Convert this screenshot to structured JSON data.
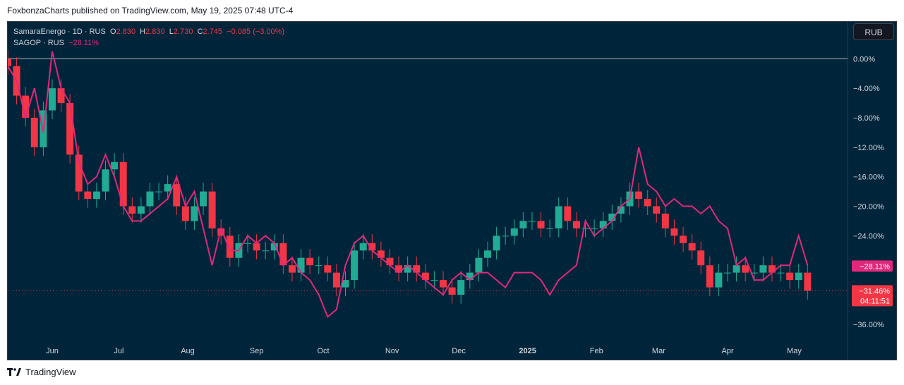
{
  "header": {
    "published_text": "FoxbonzaCharts published on TradingView.com, May 19, 2025 07:48 UTC-4"
  },
  "legend": {
    "line1_symbol": "SamaraEnergo · 1D · RUS",
    "o_label": "O",
    "o_value": "2.830",
    "h_label": "H",
    "h_value": "2.830",
    "l_label": "L",
    "l_value": "2.730",
    "c_label": "C",
    "c_value": "2.745",
    "change": "−0.085 (−3.00%)",
    "line2_symbol": "SAGOP · RUS",
    "line2_change": "−28.11%"
  },
  "currency_button": "RUB",
  "footer": {
    "brand": "TradingView"
  },
  "colors": {
    "background": "#00253a",
    "up": "#22ab94",
    "down": "#f23645",
    "compare_line": "#e0287a",
    "axis_text": "#d1d4dc"
  },
  "chart_data": {
    "type": "line",
    "title": "SamaraEnergo · 1D · RUS",
    "ylabel": "",
    "y_axis_format": "percent",
    "ylim": [
      -38.5,
      5
    ],
    "yticks": [
      "0.00%",
      "−4.00%",
      "−8.00%",
      "−12.00%",
      "−16.00%",
      "−20.00%",
      "−24.00%",
      "−36.00%"
    ],
    "ytick_values": [
      0,
      -4,
      -8,
      -12,
      -16,
      -20,
      -24,
      -36
    ],
    "xticks": [
      "Jun",
      "Jul",
      "Aug",
      "Sep",
      "Oct",
      "Nov",
      "Dec",
      "2025",
      "Feb",
      "Mar",
      "Apr",
      "May"
    ],
    "xtick_days": [
      20,
      50,
      81,
      112,
      142,
      173,
      203,
      234,
      265,
      293,
      324,
      354
    ],
    "x_range_days": [
      0,
      378
    ],
    "price_labels": [
      {
        "text": "−28.11%",
        "value": -28.11,
        "color": "#e0287a"
      },
      {
        "text": "−31.46%",
        "value": -31.46,
        "color": "#f23645",
        "countdown": "04:11:51"
      }
    ],
    "baseline_value": 0,
    "last_value_line": -31.46,
    "series": [
      {
        "name": "SAGOP · RUS",
        "x": [
          0,
          4,
          8,
          12,
          16,
          20,
          24,
          28,
          32,
          36,
          40,
          44,
          48,
          52,
          56,
          60,
          64,
          68,
          72,
          76,
          80,
          84,
          88,
          92,
          96,
          100,
          104,
          108,
          112,
          116,
          120,
          124,
          128,
          132,
          136,
          140,
          144,
          148,
          152,
          156,
          160,
          164,
          168,
          172,
          176,
          180,
          184,
          188,
          192,
          196,
          200,
          204,
          208,
          212,
          216,
          220,
          224,
          228,
          232,
          236,
          240,
          244,
          248,
          252,
          256,
          260,
          264,
          268,
          272,
          276,
          280,
          284,
          288,
          292,
          296,
          300,
          304,
          308,
          312,
          316,
          320,
          324,
          328,
          332,
          336,
          340,
          344,
          348,
          352,
          356,
          360
        ],
        "values": [
          -1,
          -3,
          -8,
          -4,
          -10,
          1,
          -4,
          -6,
          -14,
          -17,
          -16,
          -13,
          -16,
          -20,
          -22,
          -22,
          -21,
          -20,
          -19,
          -16,
          -20,
          -18,
          -23,
          -28,
          -23,
          -26,
          -26,
          -24,
          -25,
          -24,
          -25,
          -28,
          -27,
          -29,
          -30,
          -32,
          -35,
          -34,
          -28,
          -25,
          -24,
          -26,
          -27,
          -28,
          -29,
          -28,
          -29,
          -30,
          -31,
          -32,
          -30,
          -29,
          -30,
          -29,
          -29,
          -30,
          -31,
          -29,
          -29,
          -29,
          -30,
          -32,
          -30,
          -29,
          -28,
          -22,
          -24,
          -23,
          -22,
          -20,
          -19,
          -12,
          -17,
          -18,
          -20,
          -19,
          -20,
          -20,
          -21,
          -20,
          -22,
          -23,
          -28,
          -27,
          -30,
          -30,
          -29,
          -28,
          -28,
          -24,
          -28
        ]
      },
      {
        "name": "SamaraEnergo · 1D · RUS",
        "style": "candles",
        "x": [
          0,
          4,
          8,
          12,
          16,
          20,
          24,
          28,
          32,
          36,
          40,
          44,
          48,
          52,
          56,
          60,
          64,
          68,
          72,
          76,
          80,
          84,
          88,
          92,
          96,
          100,
          104,
          108,
          112,
          116,
          120,
          124,
          128,
          132,
          136,
          140,
          144,
          148,
          152,
          156,
          160,
          164,
          168,
          172,
          176,
          180,
          184,
          188,
          192,
          196,
          200,
          204,
          208,
          212,
          216,
          220,
          224,
          228,
          232,
          236,
          240,
          244,
          248,
          252,
          256,
          260,
          264,
          268,
          272,
          276,
          280,
          284,
          288,
          292,
          296,
          300,
          304,
          308,
          312,
          316,
          320,
          324,
          328,
          332,
          336,
          340,
          344,
          348,
          352,
          356,
          360
        ],
        "values": [
          -1,
          -5,
          -8,
          -12,
          -7,
          -4,
          -6,
          -13,
          -18,
          -19,
          -18,
          -15,
          -14,
          -20,
          -21,
          -20,
          -18,
          -18,
          -17,
          -20,
          -22,
          -20,
          -18,
          -23,
          -24,
          -27,
          -25,
          -25,
          -26,
          -26,
          -25,
          -28,
          -29,
          -27,
          -28,
          -28,
          -29,
          -31,
          -30,
          -26,
          -25,
          -26,
          -27,
          -28,
          -29,
          -28,
          -29,
          -30,
          -30,
          -31,
          -32,
          -30,
          -29,
          -27,
          -26,
          -24,
          -24,
          -23,
          -22,
          -22,
          -23,
          -23,
          -20,
          -22,
          -23,
          -23,
          -23,
          -22,
          -21,
          -20,
          -18,
          -19,
          -20,
          -21,
          -23,
          -24,
          -25,
          -26,
          -28,
          -31,
          -29,
          -29,
          -28,
          -29,
          -29,
          -28,
          -29,
          -29,
          -30,
          -29,
          -31.46
        ]
      }
    ]
  }
}
